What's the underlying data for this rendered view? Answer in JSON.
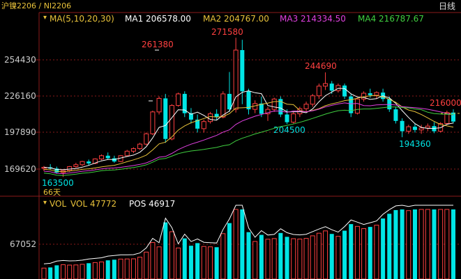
{
  "header": {
    "symbol": "沪镍2206 / NI2206",
    "period": "日线"
  },
  "ma_legend": {
    "label": "MA(5,10,20,30)",
    "ma1": "MA1 206578.00",
    "ma2": "MA2 204767.00",
    "ma3": "MA3 214334.50",
    "ma4": "MA4 216787.67",
    "colors": {
      "label": "#e8c23a",
      "ma1": "#ffffff",
      "ma2": "#e8c23a",
      "ma3": "#e040e0",
      "ma4": "#40d040"
    }
  },
  "vol_legend": {
    "label": "VOL",
    "vol": "VOL 47772",
    "pos": "POS 46917"
  },
  "price_axis": [
    "254430",
    "226160",
    "197890",
    "169620"
  ],
  "vol_axis": [
    "67052"
  ],
  "annotations": {
    "high": "271580",
    "p261380": "261380",
    "p244690": "244690",
    "p216000": "216000",
    "p204500": "204500",
    "p194360": "194360",
    "low": "163500",
    "days": "66天"
  },
  "colors": {
    "up": "#ff4040",
    "down": "#00e5e5",
    "grid": "#8b1a1a"
  },
  "chart_data": {
    "type": "candlestick",
    "ohlc": [
      [
        170200,
        172000,
        168000,
        171000
      ],
      [
        171000,
        173500,
        169500,
        170000
      ],
      [
        170000,
        171500,
        166000,
        167000
      ],
      [
        167000,
        169000,
        163500,
        168500
      ],
      [
        168500,
        172000,
        167500,
        171500
      ],
      [
        171500,
        174500,
        170500,
        173000
      ],
      [
        173000,
        176000,
        172000,
        175500
      ],
      [
        175500,
        177000,
        172500,
        174000
      ],
      [
        174000,
        178000,
        173500,
        177500
      ],
      [
        177500,
        181000,
        176500,
        180000
      ],
      [
        180000,
        182500,
        177000,
        178000
      ],
      [
        178000,
        180000,
        174500,
        175500
      ],
      [
        175500,
        180500,
        175000,
        180000
      ],
      [
        180000,
        184500,
        179500,
        183500
      ],
      [
        183500,
        186500,
        182000,
        185500
      ],
      [
        185500,
        190000,
        184500,
        189000
      ],
      [
        189000,
        198000,
        188000,
        197000
      ],
      [
        197000,
        215000,
        196000,
        214000
      ],
      [
        214000,
        226000,
        212000,
        224500
      ],
      [
        224500,
        228000,
        190000,
        193000
      ],
      [
        193000,
        220000,
        192000,
        219000
      ],
      [
        219000,
        229000,
        218000,
        228000
      ],
      [
        228000,
        230000,
        210000,
        213000
      ],
      [
        213000,
        217000,
        205000,
        208000
      ],
      [
        208000,
        212000,
        198000,
        201000
      ],
      [
        201000,
        208000,
        198000,
        206500
      ],
      [
        206500,
        214000,
        205000,
        212500
      ],
      [
        212500,
        216000,
        208000,
        210000
      ],
      [
        210000,
        230000,
        209000,
        228000
      ],
      [
        228000,
        245000,
        214000,
        216000
      ],
      [
        216000,
        271580,
        213500,
        262000
      ],
      [
        262000,
        270000,
        220000,
        230000
      ],
      [
        230000,
        232000,
        212000,
        216000
      ],
      [
        216000,
        223000,
        213000,
        220500
      ],
      [
        220500,
        226000,
        210000,
        212500
      ],
      [
        212500,
        218000,
        207000,
        216000
      ],
      [
        216000,
        225000,
        214000,
        224000
      ],
      [
        224000,
        226000,
        210000,
        212000
      ],
      [
        212000,
        216000,
        204500,
        206000
      ],
      [
        206000,
        214000,
        205000,
        212500
      ],
      [
        212500,
        218000,
        210000,
        216500
      ],
      [
        216500,
        222000,
        214000,
        220000
      ],
      [
        220000,
        228000,
        218000,
        226500
      ],
      [
        226500,
        236000,
        224000,
        234000
      ],
      [
        234000,
        244690,
        231000,
        236000
      ],
      [
        236000,
        238000,
        228000,
        230500
      ],
      [
        230500,
        236000,
        229000,
        234500
      ],
      [
        234500,
        236000,
        224000,
        226000
      ],
      [
        226000,
        228000,
        210000,
        213000
      ],
      [
        213000,
        225000,
        212000,
        224000
      ],
      [
        224000,
        230000,
        222000,
        228500
      ],
      [
        228500,
        232000,
        225000,
        227000
      ],
      [
        227000,
        230000,
        224000,
        229000
      ],
      [
        229000,
        232000,
        222000,
        224000
      ],
      [
        224000,
        226000,
        214000,
        216000
      ],
      [
        216000,
        218000,
        205000,
        207000
      ],
      [
        207000,
        209000,
        194360,
        199000
      ],
      [
        199000,
        204000,
        197000,
        202500
      ],
      [
        202500,
        205000,
        198000,
        200000
      ],
      [
        200000,
        204000,
        197000,
        201500
      ],
      [
        201500,
        205000,
        199000,
        203000
      ],
      [
        203000,
        206000,
        197500,
        199000
      ],
      [
        199000,
        206000,
        198000,
        205000
      ],
      [
        205000,
        215000,
        204000,
        213500
      ],
      [
        213500,
        216000,
        205000,
        206500
      ]
    ]
  }
}
